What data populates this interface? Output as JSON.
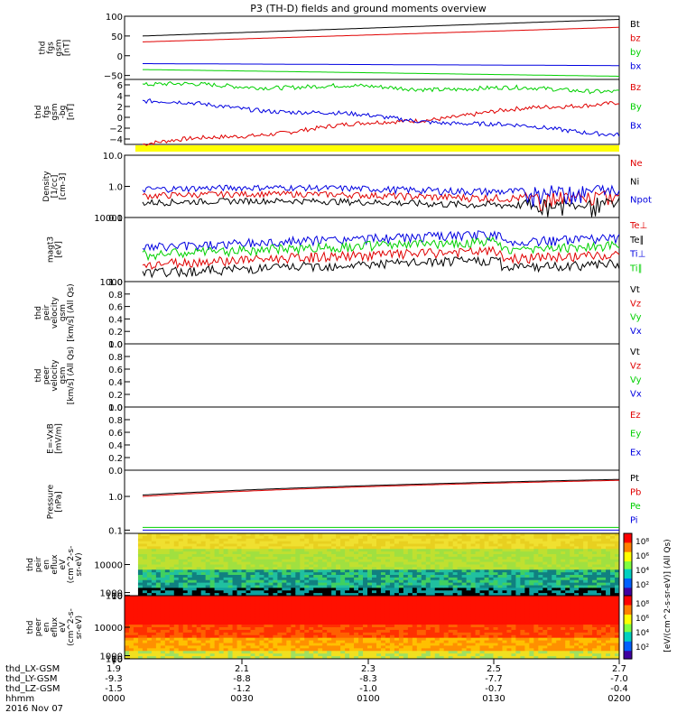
{
  "title": "P3 (TH-D) fields and ground moments overview",
  "colors": {
    "black": "#000000",
    "red": "#e00000",
    "green": "#00d000",
    "blue": "#0000e0",
    "yellow": "#ffff00",
    "bright_green": "#30e030"
  },
  "chart_data": [
    {
      "id": "fgs",
      "type": "line",
      "ylabel": [
        "thd",
        "fgs",
        "gsm",
        "[nT]"
      ],
      "ylim": [
        -60,
        100
      ],
      "ticks": [
        "100",
        "50",
        "0",
        "−50"
      ],
      "tick_values": [
        100,
        50,
        0,
        -50
      ],
      "series": [
        {
          "name": "Bt",
          "color": "black",
          "from": 50,
          "to": 92
        },
        {
          "name": "bz",
          "color": "red",
          "from": 35,
          "to": 72
        },
        {
          "name": "by",
          "color": "green",
          "from": -35,
          "to": -52
        },
        {
          "name": "bx",
          "color": "blue",
          "from": -20,
          "to": -25
        }
      ]
    },
    {
      "id": "fgm",
      "type": "line",
      "ylabel": [
        "thd",
        "fgs",
        "gsm",
        "-bg",
        "[nT]"
      ],
      "ylim": [
        -5,
        7
      ],
      "ticks": [
        "6",
        "4",
        "2",
        "0",
        "−2",
        "−4"
      ],
      "tick_values": [
        6,
        4,
        2,
        0,
        -2,
        -4
      ],
      "series": [
        {
          "name": "Bz",
          "color": "red",
          "from": -5,
          "to": 3
        },
        {
          "name": "By",
          "color": "green",
          "from": 6,
          "to": 5
        },
        {
          "name": "Bx",
          "color": "blue",
          "from": 3,
          "to": -3
        }
      ]
    },
    {
      "id": "density",
      "type": "line",
      "log": true,
      "ylabel": [
        "Density",
        "[1/cc]",
        "[cm-3]"
      ],
      "ylim": [
        0.1,
        10
      ],
      "ticks": [
        "10.0",
        "1.0",
        "0.1"
      ],
      "tick_values": [
        10,
        1,
        0.1
      ],
      "series": [
        {
          "name": "Ne",
          "color": "red",
          "level": 0.5
        },
        {
          "name": "Ni",
          "color": "black",
          "level": 0.3
        },
        {
          "name": "Npot",
          "color": "blue",
          "level": 0.8
        }
      ]
    },
    {
      "id": "temp",
      "type": "line",
      "log": true,
      "ylabel": [
        "magt3",
        "[eV]"
      ],
      "ylim": [
        1000,
        10000
      ],
      "ticks": [
        "10000",
        "1000"
      ],
      "tick_values": [
        10000,
        1000
      ],
      "series": [
        {
          "name": "Te⊥",
          "color": "red",
          "level": 2500
        },
        {
          "name": "Te∥",
          "color": "black",
          "level": 1800
        },
        {
          "name": "Ti⊥",
          "color": "blue",
          "level": 4500
        },
        {
          "name": "Ti∥",
          "color": "green",
          "level": 3500
        }
      ]
    },
    {
      "id": "ve",
      "type": "line",
      "ylabel": [
        "thd",
        "peir",
        "velocity",
        "gsm",
        "[km/s] (All Qs)"
      ],
      "ylim": [
        0,
        1
      ],
      "ticks": [
        "1.0",
        "0.8",
        "0.6",
        "0.4",
        "0.2",
        "0.0"
      ],
      "tick_values": [
        1,
        0.8,
        0.6,
        0.4,
        0.2,
        0
      ],
      "series": [
        {
          "name": "Vt",
          "color": "black"
        },
        {
          "name": "Vz",
          "color": "red"
        },
        {
          "name": "Vy",
          "color": "green"
        },
        {
          "name": "Vx",
          "color": "blue"
        }
      ]
    },
    {
      "id": "vi",
      "type": "line",
      "ylabel": [
        "thd",
        "peer",
        "velocity",
        "gsm",
        "[km/s] (All Qs)"
      ],
      "ylim": [
        0,
        1
      ],
      "ticks": [
        "1.0",
        "0.8",
        "0.6",
        "0.4",
        "0.2",
        "0.0"
      ],
      "tick_values": [
        1,
        0.8,
        0.6,
        0.4,
        0.2,
        0
      ],
      "series": [
        {
          "name": "Vt",
          "color": "black"
        },
        {
          "name": "Vz",
          "color": "red"
        },
        {
          "name": "Vy",
          "color": "green"
        },
        {
          "name": "Vx",
          "color": "blue"
        }
      ]
    },
    {
      "id": "efield",
      "type": "line",
      "ylabel": [
        "E=-VxB",
        "[mV/m]"
      ],
      "ylim": [
        0,
        1
      ],
      "ticks": [
        "1.0",
        "0.8",
        "0.6",
        "0.4",
        "0.2",
        "0.0"
      ],
      "tick_values": [
        1,
        0.8,
        0.6,
        0.4,
        0.2,
        0
      ],
      "series": [
        {
          "name": "Ez",
          "color": "red"
        },
        {
          "name": "Ey",
          "color": "green"
        },
        {
          "name": "Ex",
          "color": "blue"
        }
      ]
    },
    {
      "id": "pressure",
      "type": "line",
      "log": true,
      "ylabel": [
        "Pressure",
        "[nPa]"
      ],
      "ylim": [
        0.08,
        6
      ],
      "ticks": [
        "1.0",
        "0.1"
      ],
      "tick_values": [
        1,
        0.1
      ],
      "series": [
        {
          "name": "Pt",
          "color": "black",
          "from": 1.1,
          "to": 3.2
        },
        {
          "name": "Pb",
          "color": "red",
          "from": 1.0,
          "to": 3.0
        },
        {
          "name": "Pe",
          "color": "green",
          "from": 0.12,
          "to": 0.12
        },
        {
          "name": "Pi",
          "color": "blue",
          "from": 0.1,
          "to": 0.1
        }
      ]
    },
    {
      "id": "ion_spec",
      "type": "heatmap",
      "ylabel": [
        "thd",
        "peir",
        "en",
        "eflux",
        "eV",
        "(cm^2-s-",
        "sr-eV)"
      ],
      "ylim": [
        5,
        20000
      ],
      "ticks": [
        "10000",
        "1000",
        "100",
        "10"
      ],
      "tick_values": [
        10000,
        1000,
        100,
        10
      ]
    },
    {
      "id": "elec_spec",
      "type": "heatmap",
      "ylabel": [
        "thd",
        "peer",
        "en",
        "eflux",
        "eV",
        "(cm^2-s-",
        "sr-eV)"
      ],
      "ylim": [
        5,
        20000
      ],
      "ticks": [
        "10000",
        "1000",
        "100",
        "10"
      ],
      "tick_values": [
        10000,
        1000,
        100,
        10
      ]
    }
  ],
  "colorbar": {
    "label": "[eV/(cm^2-s-sr-eV)] (All Qs)",
    "ticks": [
      "10⁸",
      "10⁶",
      "10⁴",
      "10²"
    ]
  },
  "xaxis": {
    "rows": [
      {
        "name": "thd_LX-GSM",
        "values": [
          "1.9",
          "2.1",
          "2.3",
          "2.5",
          "2.7"
        ],
        "sub": [
          "-9.3",
          "-8.8",
          "-8.3",
          "-7.7",
          "-7.0"
        ]
      },
      {
        "name": "thd_LY-GSM",
        "values": [
          "-9.3",
          "-8.8",
          "-8.3",
          "-7.7",
          "-7.0"
        ]
      },
      {
        "name": "thd_LZ-GSM",
        "values": [
          "-1.5",
          "-1.2",
          "-1.0",
          "-0.7",
          "-0.4"
        ]
      },
      {
        "name": "hhmm",
        "values": [
          "0000",
          "0030",
          "0100",
          "0130",
          "0200"
        ]
      }
    ],
    "date": "2016 Nov 07"
  }
}
